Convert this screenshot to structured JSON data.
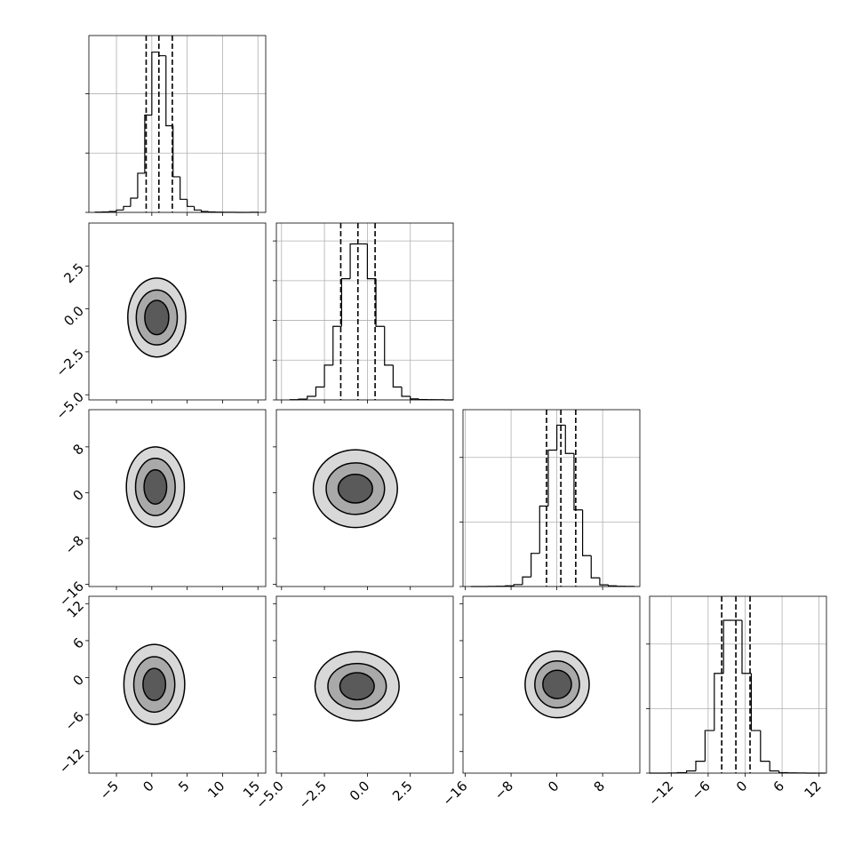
{
  "chart_data": {
    "type": "corner",
    "grid": true,
    "parameters": [
      {
        "lim": [
          -8.9,
          16.1
        ],
        "ticks": [
          {
            "value": -5,
            "label": "−5"
          },
          0,
          5,
          10,
          15
        ]
      },
      {
        "lim": [
          -5.3,
          5.0
        ],
        "ticks": [
          {
            "value": -5.0,
            "label": "−5.0"
          },
          {
            "value": -2.5,
            "label": "−2.5"
          },
          {
            "value": 0.0,
            "label": "0.0"
          },
          {
            "value": 2.5,
            "label": "2.5"
          }
        ]
      },
      {
        "lim": [
          -16.4,
          14.5
        ],
        "ticks": [
          {
            "value": -16,
            "label": "−16"
          },
          {
            "value": -8,
            "label": "−8"
          },
          0,
          8
        ]
      },
      {
        "lim": [
          -15.5,
          13.2
        ],
        "ticks": [
          {
            "value": -12,
            "label": "−12"
          },
          {
            "value": -6,
            "label": "−6"
          },
          0,
          6,
          12
        ]
      }
    ],
    "histograms": [
      {
        "bins": [
          -8,
          -7,
          -6,
          -5,
          -4,
          -3,
          -2,
          -1,
          0,
          1,
          2,
          3,
          4,
          5,
          6,
          7,
          8,
          9,
          10,
          11,
          12,
          13,
          14,
          15
        ],
        "counts": [
          2,
          4,
          8,
          20,
          50,
          120,
          330,
          820,
          1350,
          1320,
          730,
          300,
          110,
          50,
          20,
          8,
          4,
          2,
          1,
          1,
          0,
          0,
          1
        ],
        "ylim": [
          0,
          1490
        ],
        "yticks": [
          0,
          500,
          1000
        ],
        "quantiles": [
          -0.8,
          1.0,
          2.9
        ]
      },
      {
        "bins": [
          -4.5,
          -4,
          -3.5,
          -3,
          -2.5,
          -2,
          -1.5,
          -1,
          -0.5,
          0,
          0.5,
          1,
          1.5,
          2,
          2.5,
          3,
          3.5,
          4,
          4.5,
          5
        ],
        "counts": [
          1,
          4,
          18,
          65,
          175,
          370,
          610,
          785,
          785,
          610,
          370,
          175,
          65,
          18,
          5,
          2,
          1,
          1,
          0
        ],
        "ylim": [
          0,
          890
        ],
        "yticks": [
          0,
          200,
          400,
          600,
          800
        ],
        "quantiles": [
          -1.55,
          -0.55,
          0.45
        ]
      },
      {
        "bins": [
          -15,
          -13.5,
          -12,
          -10.5,
          -9,
          -7.5,
          -6,
          -4.5,
          -3,
          -1.5,
          0,
          1.5,
          3,
          4.5,
          6,
          7.5,
          9,
          10.5,
          12,
          13.5
        ],
        "counts": [
          0,
          0,
          1,
          2,
          5,
          15,
          74,
          257,
          623,
          1057,
          1250,
          1031,
          594,
          239,
          67,
          13,
          5,
          2,
          1
        ],
        "ylim": [
          0,
          1370
        ],
        "yticks": [
          0,
          500,
          1000
        ],
        "quantiles": [
          -1.8,
          0.7,
          3.3
        ]
      },
      {
        "bins": [
          -15.5,
          -14,
          -12.5,
          -11,
          -9.5,
          -8,
          -6.5,
          -5,
          -3.5,
          -2,
          -0.5,
          1,
          2.5,
          4,
          5.5,
          7,
          8.5,
          10,
          11.5,
          13
        ],
        "counts": [
          0,
          0,
          1,
          4,
          17,
          92,
          330,
          773,
          1184,
          1184,
          773,
          330,
          92,
          17,
          4,
          2,
          1,
          0,
          0
        ],
        "ylim": [
          0,
          1370
        ],
        "yticks": [
          0,
          500,
          1000
        ],
        "quantiles": [
          -3.8,
          -1.5,
          0.8
        ]
      }
    ],
    "contours": [
      {
        "center_x": 0.7,
        "center_y": -0.5,
        "radii_x": [
          4.1,
          2.9,
          1.7
        ],
        "radii_y": [
          2.3,
          1.6,
          1.0
        ]
      },
      {
        "center_x": 0.5,
        "center_y": 1.0,
        "radii_x": [
          4.1,
          2.8,
          1.6
        ],
        "radii_y": [
          7.0,
          5.0,
          3.0
        ]
      },
      {
        "center_x": -0.7,
        "center_y": 0.7,
        "radii_x": [
          2.45,
          1.7,
          1.0
        ],
        "radii_y": [
          6.8,
          4.5,
          2.5
        ]
      },
      {
        "center_x": 0.35,
        "center_y": -1.1,
        "radii_x": [
          4.3,
          2.9,
          1.6
        ],
        "radii_y": [
          6.5,
          4.5,
          2.6
        ]
      },
      {
        "center_x": -0.6,
        "center_y": -1.4,
        "radii_x": [
          2.45,
          1.7,
          1.0
        ],
        "radii_y": [
          5.6,
          3.7,
          2.2
        ]
      },
      {
        "center_x": 0.05,
        "center_y": -1.1,
        "radii_x": [
          5.6,
          3.9,
          2.5
        ],
        "radii_y": [
          5.4,
          3.8,
          2.3
        ]
      }
    ]
  }
}
